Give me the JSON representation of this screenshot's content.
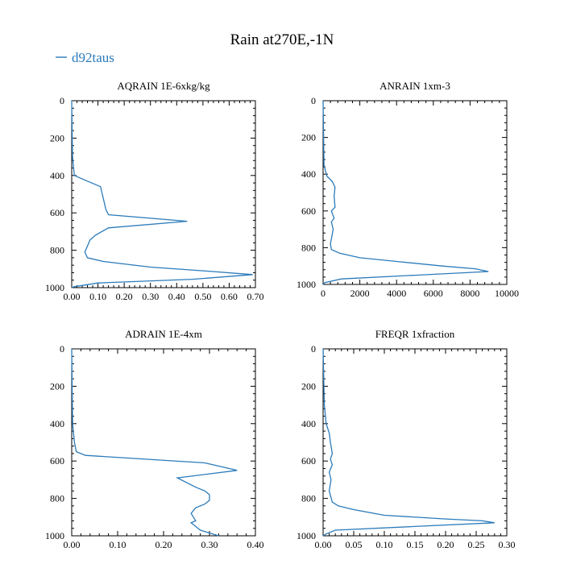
{
  "title": "Rain at270E,-1N",
  "legend": {
    "label": "d92taus",
    "color": "#2b7bba"
  },
  "chart_data": [
    {
      "type": "line",
      "title": "AQRAIN  1E-6xkg/kg",
      "xlabel": "",
      "ylabel": "",
      "xlim": [
        0,
        0.7
      ],
      "ylim": [
        1000,
        0
      ],
      "y_inverted": true,
      "xticks": [
        0,
        0.1,
        0.2,
        0.3,
        0.4,
        0.5,
        0.6,
        0.7
      ],
      "xtick_labels": [
        "0.00",
        "0.10",
        "0.20",
        "0.30",
        "0.40",
        "0.50",
        "0.60",
        "0.70"
      ],
      "yticks": [
        0,
        200,
        400,
        600,
        800,
        1000
      ],
      "ytick_labels": [
        "0",
        "200",
        "400",
        "600",
        "800",
        "1000"
      ],
      "series": [
        {
          "name": "d92taus",
          "x": [
            0,
            0.003,
            0.01,
            0.06,
            0.11,
            0.13,
            0.14,
            0.44,
            0.14,
            0.09,
            0.07,
            0.05,
            0.06,
            0.12,
            0.3,
            0.5,
            0.69,
            0.46,
            0.1,
            0.01,
            0
          ],
          "y": [
            0,
            300,
            400,
            430,
            460,
            580,
            610,
            645,
            680,
            720,
            745,
            810,
            840,
            860,
            890,
            910,
            930,
            955,
            975,
            995,
            1000
          ]
        }
      ]
    },
    {
      "type": "line",
      "title": "ANRAIN  1xm-3",
      "xlabel": "",
      "ylabel": "",
      "xlim": [
        0,
        10000
      ],
      "ylim": [
        1000,
        0
      ],
      "y_inverted": true,
      "xticks": [
        0,
        2000,
        4000,
        6000,
        8000,
        10000
      ],
      "xtick_labels": [
        "0",
        "2000",
        "4000",
        "6000",
        "8000",
        "10000"
      ],
      "yticks": [
        0,
        200,
        400,
        600,
        800,
        1000
      ],
      "ytick_labels": [
        "0",
        "200",
        "400",
        "600",
        "800",
        "1000"
      ],
      "series": [
        {
          "name": "d92taus",
          "x": [
            0,
            50,
            200,
            500,
            650,
            600,
            650,
            450,
            600,
            450,
            550,
            400,
            450,
            900,
            2000,
            4000,
            6500,
            8300,
            9000,
            5000,
            1000,
            100,
            0
          ],
          "y": [
            0,
            350,
            410,
            440,
            470,
            520,
            580,
            600,
            640,
            660,
            700,
            780,
            810,
            830,
            855,
            875,
            900,
            915,
            930,
            950,
            970,
            990,
            1000
          ]
        }
      ]
    },
    {
      "type": "line",
      "title": "ADRAIN  1E-4xm",
      "xlabel": "",
      "ylabel": "",
      "xlim": [
        0,
        0.4
      ],
      "ylim": [
        1000,
        0
      ],
      "y_inverted": true,
      "xticks": [
        0,
        0.1,
        0.2,
        0.3,
        0.4
      ],
      "xtick_labels": [
        "0.00",
        "0.10",
        "0.20",
        "0.30",
        "0.40"
      ],
      "yticks": [
        0,
        200,
        400,
        600,
        800,
        1000
      ],
      "ytick_labels": [
        "0",
        "200",
        "400",
        "600",
        "800",
        "1000"
      ],
      "series": [
        {
          "name": "d92taus",
          "x": [
            0,
            0.002,
            0.006,
            0.01,
            0.03,
            0.29,
            0.36,
            0.23,
            0.27,
            0.29,
            0.3,
            0.3,
            0.29,
            0.27,
            0.26,
            0.27,
            0.26,
            0.27,
            0.28,
            0.32
          ],
          "y": [
            0,
            400,
            500,
            550,
            570,
            610,
            650,
            690,
            740,
            760,
            780,
            810,
            830,
            850,
            880,
            920,
            930,
            950,
            970,
            1000
          ]
        }
      ]
    },
    {
      "type": "line",
      "title": "FREQR  1xfraction",
      "xlabel": "",
      "ylabel": "",
      "xlim": [
        0,
        0.3
      ],
      "ylim": [
        1000,
        0
      ],
      "y_inverted": true,
      "xticks": [
        0,
        0.05,
        0.1,
        0.15,
        0.2,
        0.25,
        0.3
      ],
      "xtick_labels": [
        "0.00",
        "0.05",
        "0.10",
        "0.15",
        "0.20",
        "0.25",
        "0.30"
      ],
      "yticks": [
        0,
        200,
        400,
        600,
        800,
        1000
      ],
      "ytick_labels": [
        "0",
        "200",
        "400",
        "600",
        "800",
        "1000"
      ],
      "series": [
        {
          "name": "d92taus",
          "x": [
            0,
            0.002,
            0.005,
            0.01,
            0.012,
            0.015,
            0.012,
            0.015,
            0.01,
            0.013,
            0.01,
            0.015,
            0.025,
            0.05,
            0.1,
            0.2,
            0.26,
            0.28,
            0.15,
            0.02,
            0.005,
            0
          ],
          "y": [
            0,
            300,
            400,
            450,
            500,
            560,
            590,
            620,
            660,
            700,
            760,
            820,
            840,
            860,
            890,
            910,
            920,
            930,
            950,
            970,
            990,
            1000
          ]
        }
      ]
    }
  ]
}
